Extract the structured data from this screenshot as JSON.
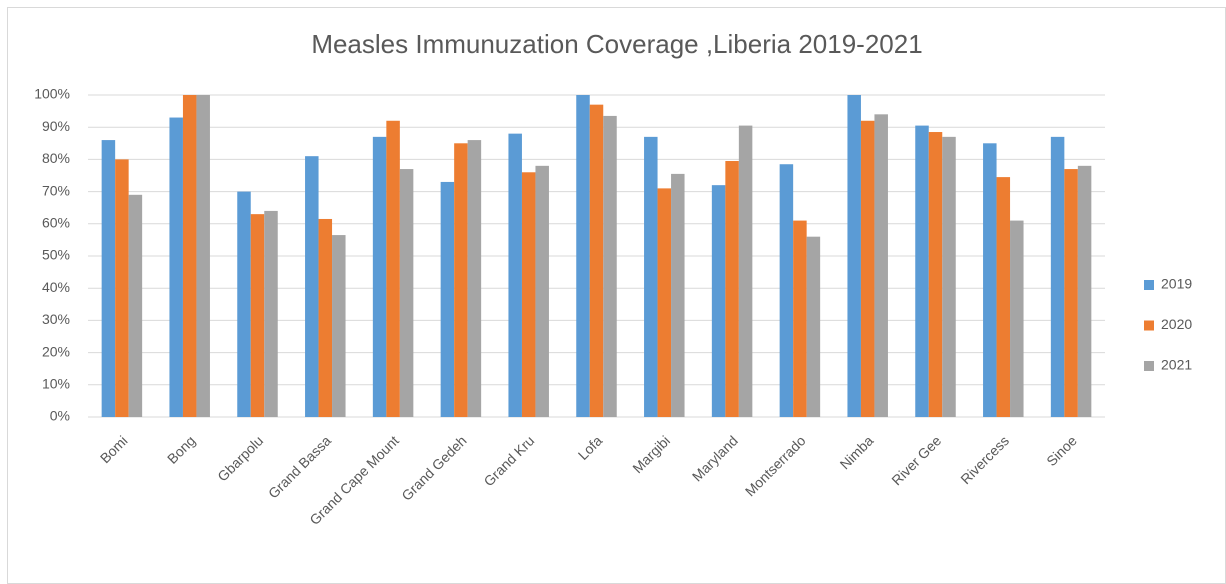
{
  "chart_data": {
    "type": "bar",
    "title": "Measles Immunuzation Coverage ,Liberia  2019-2021",
    "categories": [
      "Bomi",
      "Bong",
      "Gbarpolu",
      "Grand Bassa",
      "Grand Cape Mount",
      "Grand Gedeh",
      "Grand Kru",
      "Lofa",
      "Margibi",
      "Maryland",
      "Montserrado",
      "Nimba",
      "River Gee",
      "Rivercess",
      "Sinoe"
    ],
    "series": [
      {
        "name": "2019",
        "color": "#5b9bd5",
        "values": [
          86,
          93,
          70,
          81,
          87,
          73,
          88,
          100,
          87,
          72,
          78.5,
          100,
          90.5,
          85,
          87
        ]
      },
      {
        "name": "2020",
        "color": "#ed7d31",
        "values": [
          80,
          100,
          63,
          61.5,
          92,
          85,
          76,
          97,
          71,
          79.5,
          61,
          92,
          88.5,
          74.5,
          77
        ]
      },
      {
        "name": "2021",
        "color": "#a5a5a5",
        "values": [
          69,
          100,
          64,
          56.5,
          77,
          86,
          78,
          93.5,
          75.5,
          90.5,
          56,
          94,
          87,
          61,
          78
        ]
      }
    ],
    "ylim": [
      0,
      100
    ],
    "yticks": [
      {
        "value": 0,
        "label": "0%"
      },
      {
        "value": 10,
        "label": "10%"
      },
      {
        "value": 20,
        "label": "20%"
      },
      {
        "value": 30,
        "label": "30%"
      },
      {
        "value": 40,
        "label": "40%"
      },
      {
        "value": 50,
        "label": "50%"
      },
      {
        "value": 60,
        "label": "60%"
      },
      {
        "value": 70,
        "label": "70%"
      },
      {
        "value": 80,
        "label": "80%"
      },
      {
        "value": 90,
        "label": "90%"
      },
      {
        "value": 100,
        "label": "100%"
      }
    ],
    "grid": true,
    "legend": "right"
  }
}
